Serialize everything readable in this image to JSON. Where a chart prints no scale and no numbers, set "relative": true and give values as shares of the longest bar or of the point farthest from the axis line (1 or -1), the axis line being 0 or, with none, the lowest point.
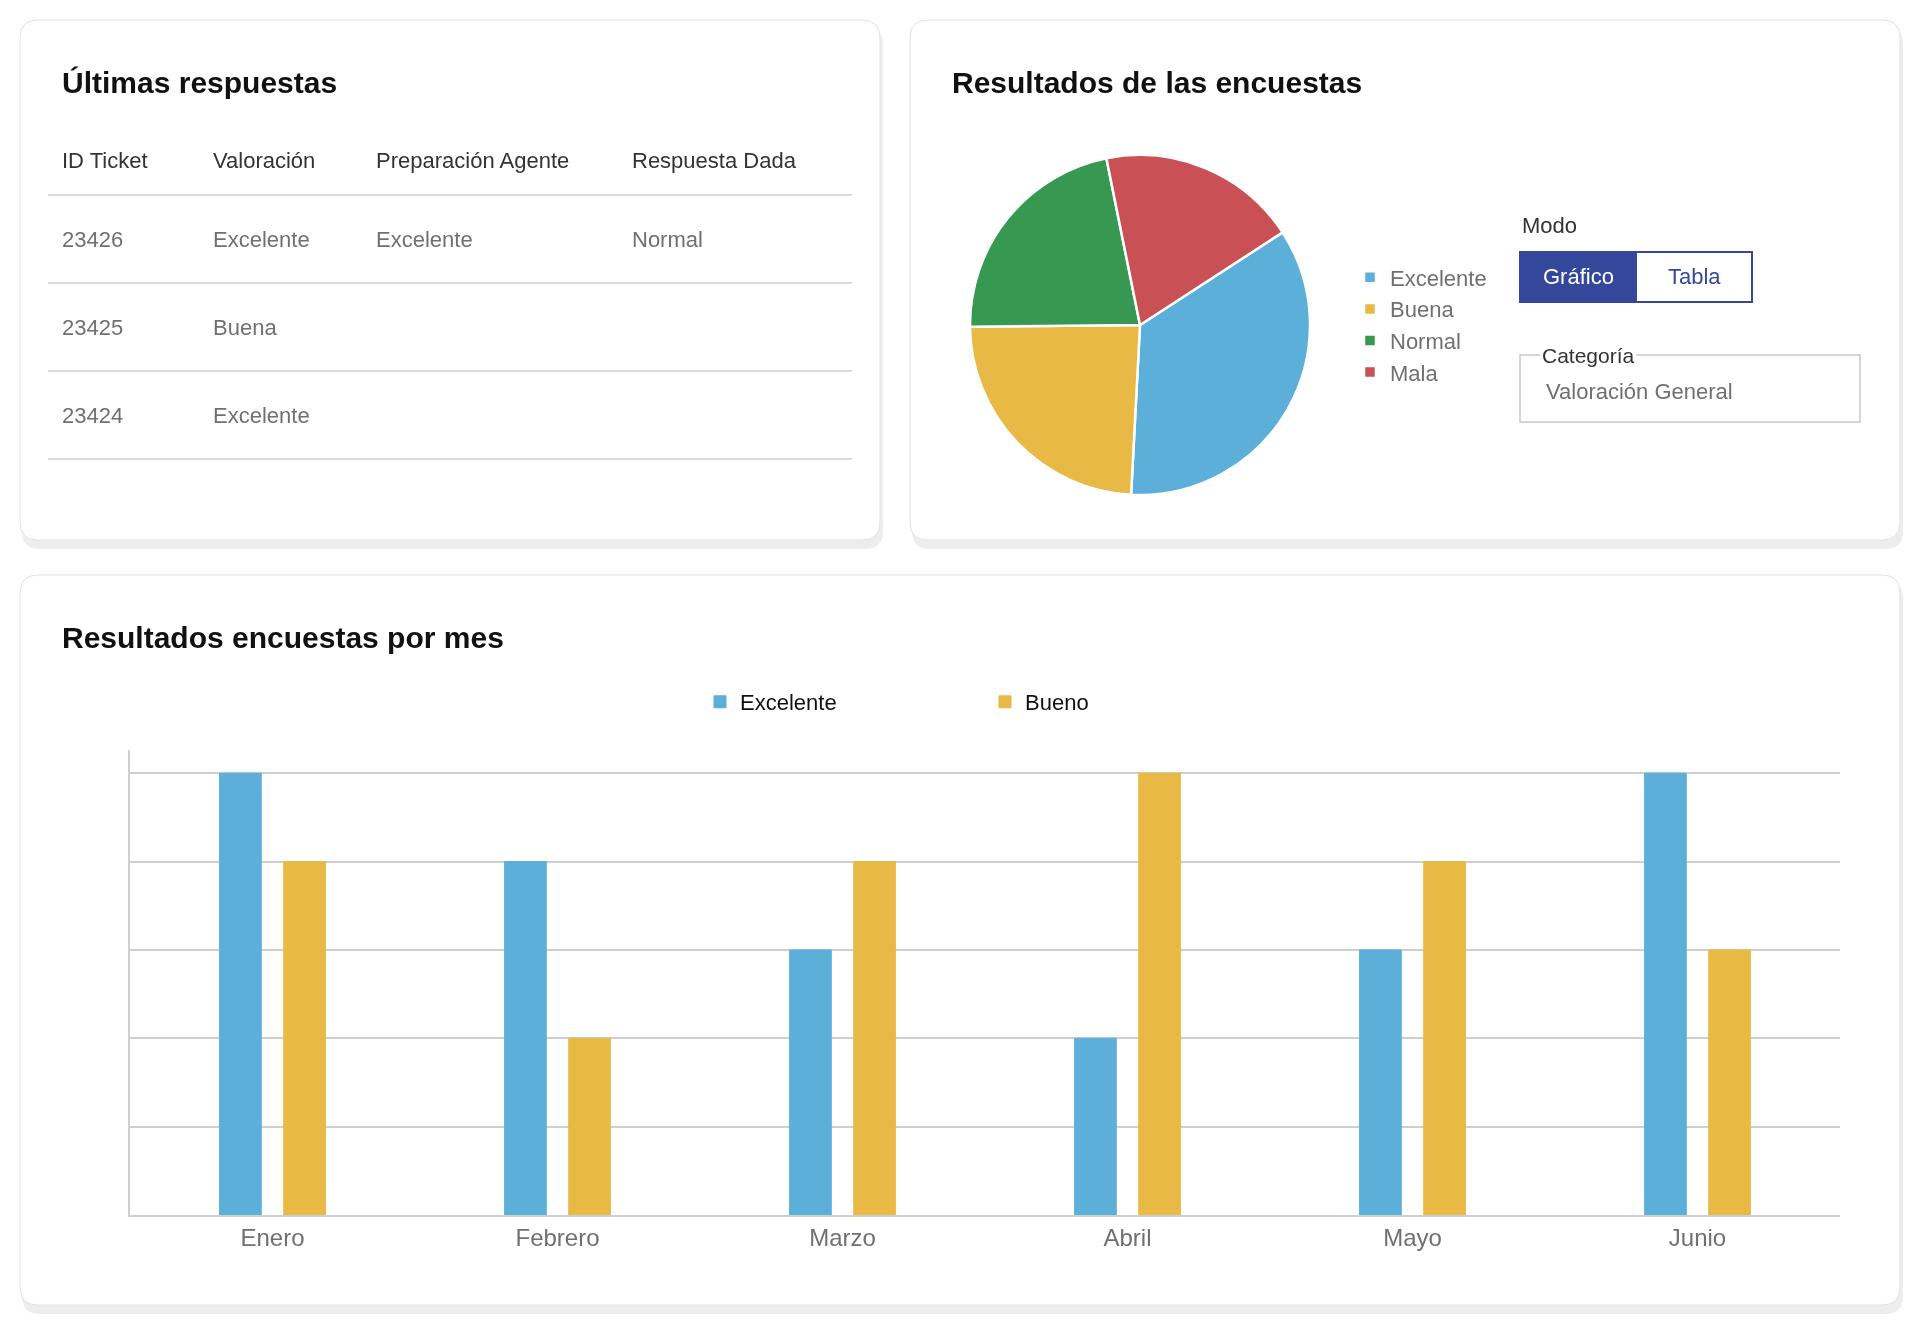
{
  "chart_data": [
    {
      "type": "other",
      "title": "Últimas respuestas",
      "categories": [
        "ID Ticket",
        "Valoración",
        "Preparación Agente",
        "Respuesta Dada"
      ],
      "annotations": [
        "23426",
        "Excelente",
        "Excelente",
        "Normal",
        "23425",
        "Buena",
        null,
        null,
        "23424",
        "Excelente",
        null,
        null
      ]
    },
    {
      "type": "pie",
      "title": "Resultados de las encuestas",
      "categories": [
        "Excelente",
        "Buena",
        "Normal",
        "Mala"
      ],
      "values": [
        35,
        24,
        22,
        19
      ],
      "colors": [
        "#5cafd8",
        "#e8b944",
        "#379951",
        "#c95054"
      ],
      "legend": "right",
      "annotations": [
        "Modo",
        "Gráfico",
        "Tabla",
        "Categoría",
        "Valoración General"
      ]
    },
    {
      "type": "bar",
      "title": "Resultados encuestas por mes",
      "categories": [
        "Enero",
        "Febrero",
        "Marzo",
        "Abril",
        "Mayo",
        "Junio"
      ],
      "relative": true,
      "series": [
        {
          "name": "Excelente",
          "color": "#5cafd8",
          "values": [
            1,
            0.8,
            0.6,
            0.4,
            0.6,
            1
          ]
        },
        {
          "name": "Bueno",
          "color": "#e8b944",
          "values": [
            0.8,
            0.4,
            0.8,
            1,
            0.8,
            0.6
          ]
        }
      ],
      "legend": "top",
      "grid": "y"
    }
  ]
}
